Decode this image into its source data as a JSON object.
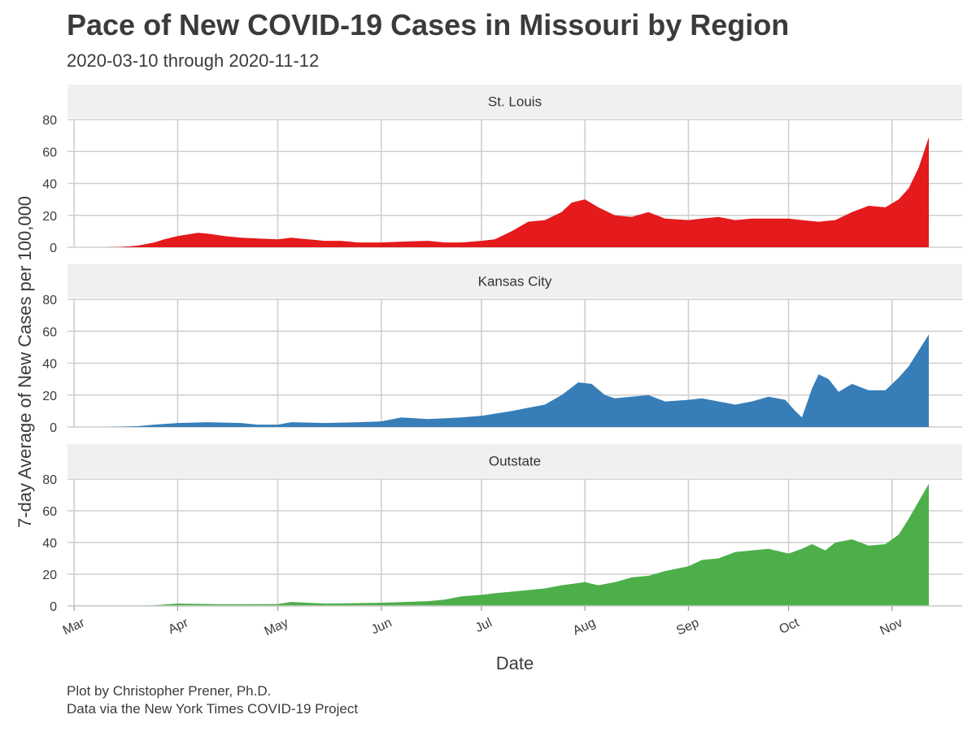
{
  "chart_data": {
    "type": "area",
    "title": "Pace of New COVID-19 Cases in Missouri by Region",
    "subtitle": "2020-03-10 through 2020-11-12",
    "xlabel": "Date",
    "ylabel": "7-day Average of New Cases per 100,000",
    "x_range": [
      "2020-02-28",
      "2020-11-22"
    ],
    "y_range": [
      0,
      80
    ],
    "y_ticks": [
      0,
      20,
      40,
      60,
      80
    ],
    "x_ticks": [
      {
        "date": "2020-03-01",
        "label": "Mar"
      },
      {
        "date": "2020-04-01",
        "label": "Apr"
      },
      {
        "date": "2020-05-01",
        "label": "May"
      },
      {
        "date": "2020-06-01",
        "label": "Jun"
      },
      {
        "date": "2020-07-01",
        "label": "Jul"
      },
      {
        "date": "2020-08-01",
        "label": "Aug"
      },
      {
        "date": "2020-09-01",
        "label": "Sep"
      },
      {
        "date": "2020-10-01",
        "label": "Oct"
      },
      {
        "date": "2020-11-01",
        "label": "Nov"
      }
    ],
    "grid": true,
    "legend": "none",
    "series": [
      {
        "name": "St. Louis",
        "color": "#e41a1c",
        "x": [
          "2020-03-10",
          "2020-03-15",
          "2020-03-20",
          "2020-03-25",
          "2020-03-28",
          "2020-04-01",
          "2020-04-04",
          "2020-04-07",
          "2020-04-10",
          "2020-04-15",
          "2020-04-20",
          "2020-04-25",
          "2020-05-01",
          "2020-05-05",
          "2020-05-10",
          "2020-05-15",
          "2020-05-20",
          "2020-05-25",
          "2020-06-01",
          "2020-06-07",
          "2020-06-15",
          "2020-06-20",
          "2020-06-25",
          "2020-07-01",
          "2020-07-05",
          "2020-07-10",
          "2020-07-15",
          "2020-07-20",
          "2020-07-25",
          "2020-07-28",
          "2020-08-01",
          "2020-08-05",
          "2020-08-10",
          "2020-08-15",
          "2020-08-20",
          "2020-08-25",
          "2020-09-01",
          "2020-09-05",
          "2020-09-10",
          "2020-09-15",
          "2020-09-20",
          "2020-09-25",
          "2020-10-01",
          "2020-10-05",
          "2020-10-10",
          "2020-10-15",
          "2020-10-20",
          "2020-10-25",
          "2020-10-30",
          "2020-11-03",
          "2020-11-06",
          "2020-11-09",
          "2020-11-12"
        ],
        "y": [
          0,
          0.2,
          1,
          3,
          5,
          7,
          8,
          9,
          8.5,
          7,
          6,
          5.5,
          5,
          6,
          5,
          4,
          4,
          3,
          3,
          3.5,
          4,
          3,
          3,
          4,
          5,
          10,
          16,
          17,
          22,
          28,
          30,
          25,
          20,
          19,
          22,
          18,
          17,
          18,
          19,
          17,
          18,
          18,
          18,
          17,
          16,
          17,
          22,
          26,
          25,
          30,
          37,
          50,
          69
        ]
      },
      {
        "name": "Kansas City",
        "color": "#377eb8",
        "x": [
          "2020-03-10",
          "2020-03-15",
          "2020-03-20",
          "2020-03-25",
          "2020-04-01",
          "2020-04-10",
          "2020-04-20",
          "2020-04-25",
          "2020-05-01",
          "2020-05-05",
          "2020-05-15",
          "2020-05-25",
          "2020-06-01",
          "2020-06-07",
          "2020-06-15",
          "2020-06-25",
          "2020-07-01",
          "2020-07-10",
          "2020-07-15",
          "2020-07-20",
          "2020-07-25",
          "2020-07-30",
          "2020-08-03",
          "2020-08-07",
          "2020-08-10",
          "2020-08-15",
          "2020-08-20",
          "2020-08-25",
          "2020-09-01",
          "2020-09-05",
          "2020-09-10",
          "2020-09-15",
          "2020-09-20",
          "2020-09-25",
          "2020-09-30",
          "2020-10-03",
          "2020-10-05",
          "2020-10-08",
          "2020-10-10",
          "2020-10-13",
          "2020-10-16",
          "2020-10-20",
          "2020-10-25",
          "2020-10-30",
          "2020-11-03",
          "2020-11-06",
          "2020-11-09",
          "2020-11-12"
        ],
        "y": [
          0,
          0.2,
          0.5,
          1.5,
          2.5,
          3,
          2.5,
          1.5,
          1.5,
          3,
          2.5,
          3,
          3.5,
          6,
          5,
          6,
          7,
          10,
          12,
          14,
          20,
          28,
          27,
          20,
          18,
          19,
          20,
          16,
          17,
          18,
          16,
          14,
          16,
          19,
          17,
          10,
          6,
          24,
          33,
          30,
          22,
          27,
          23,
          23,
          31,
          38,
          48,
          58
        ]
      },
      {
        "name": "Outstate",
        "color": "#4daf4a",
        "x": [
          "2020-03-10",
          "2020-03-20",
          "2020-03-25",
          "2020-04-01",
          "2020-04-15",
          "2020-05-01",
          "2020-05-05",
          "2020-05-15",
          "2020-06-01",
          "2020-06-15",
          "2020-06-20",
          "2020-06-25",
          "2020-07-01",
          "2020-07-05",
          "2020-07-10",
          "2020-07-15",
          "2020-07-20",
          "2020-07-25",
          "2020-08-01",
          "2020-08-05",
          "2020-08-10",
          "2020-08-15",
          "2020-08-20",
          "2020-08-25",
          "2020-09-01",
          "2020-09-05",
          "2020-09-10",
          "2020-09-15",
          "2020-09-20",
          "2020-09-25",
          "2020-10-01",
          "2020-10-05",
          "2020-10-08",
          "2020-10-12",
          "2020-10-15",
          "2020-10-20",
          "2020-10-25",
          "2020-10-30",
          "2020-11-03",
          "2020-11-06",
          "2020-11-09",
          "2020-11-12"
        ],
        "y": [
          0,
          0.2,
          0.5,
          1.5,
          1,
          1.2,
          2.5,
          1.5,
          2,
          3,
          4,
          6,
          7,
          8,
          9,
          10,
          11,
          13,
          15,
          13,
          15,
          18,
          19,
          22,
          25,
          29,
          30,
          34,
          35,
          36,
          33,
          36,
          39,
          35,
          40,
          42,
          38,
          39,
          45,
          55,
          66,
          77
        ]
      }
    ]
  }
}
